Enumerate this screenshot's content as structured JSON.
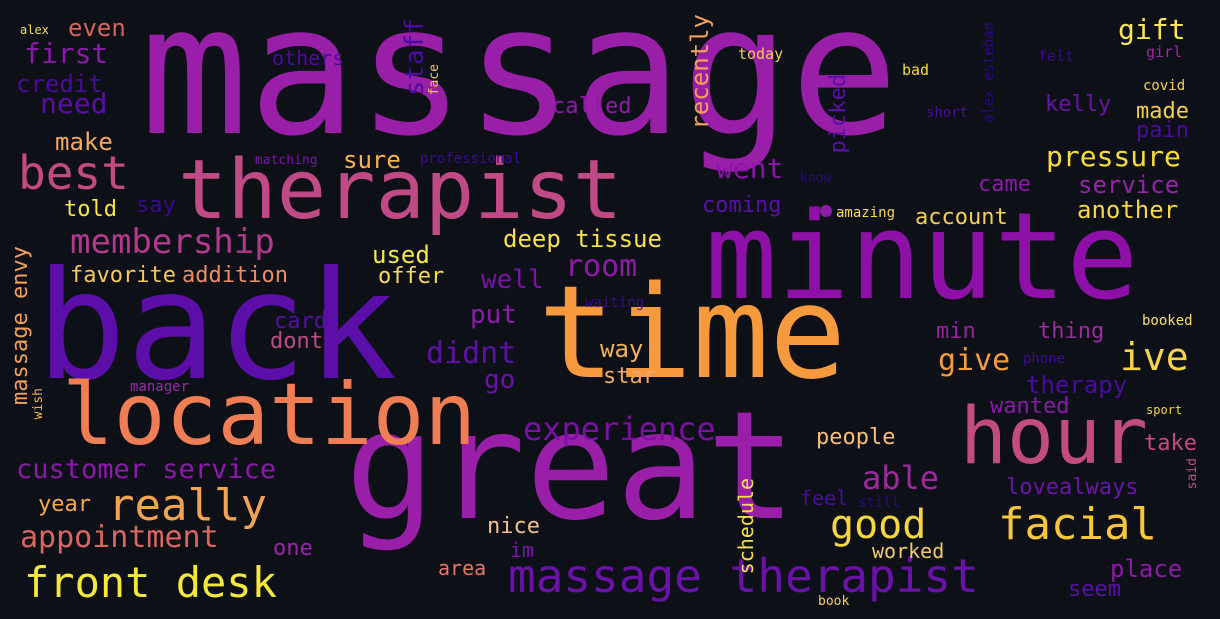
{
  "words": [
    {
      "text": "massage",
      "color": "#9a1fa8",
      "size": 180,
      "rot": 0,
      "weight": 1.0
    },
    {
      "text": "time",
      "color": "#f79a3e",
      "size": 128,
      "rot": 0,
      "weight": 0.85
    },
    {
      "text": "back",
      "color": "#5b0ea8",
      "size": 150,
      "rot": 0,
      "weight": 0.9
    },
    {
      "text": "minute",
      "color": "#8e10a8",
      "size": 120,
      "rot": 0,
      "weight": 0.8
    },
    {
      "text": "great",
      "color": "#9a1fa8",
      "size": 150,
      "rot": 0,
      "weight": 0.9
    },
    {
      "text": "therapist",
      "color": "#c04a86",
      "size": 82,
      "rot": 0,
      "weight": 0.6
    },
    {
      "text": "location",
      "color": "#ef7e55",
      "size": 86,
      "rot": 0,
      "weight": 0.6
    },
    {
      "text": "hour",
      "color": "#c24c80",
      "size": 78,
      "rot": 0,
      "weight": 0.55
    },
    {
      "text": "massage therapist",
      "color": "#6a12a8",
      "size": 46,
      "rot": 0,
      "weight": 0.4
    },
    {
      "text": "facial",
      "color": "#f8c63a",
      "size": 44,
      "rot": 0,
      "weight": 0.38
    },
    {
      "text": "good",
      "color": "#f6d542",
      "size": 40,
      "rot": 0,
      "weight": 0.35
    },
    {
      "text": "front desk",
      "color": "#f4e93b",
      "size": 42,
      "rot": 0,
      "weight": 0.36
    },
    {
      "text": "best",
      "color": "#c44b7e",
      "size": 46,
      "rot": 0,
      "weight": 0.38
    },
    {
      "text": "really",
      "color": "#f2a450",
      "size": 44,
      "rot": 0,
      "weight": 0.36
    },
    {
      "text": "membership",
      "color": "#b2398c",
      "size": 34,
      "rot": 0,
      "weight": 0.3
    },
    {
      "text": "experience",
      "color": "#7a0fa6",
      "size": 32,
      "rot": 0,
      "weight": 0.28
    },
    {
      "text": "appointment",
      "color": "#d96660",
      "size": 30,
      "rot": 0,
      "weight": 0.26
    },
    {
      "text": "customer service",
      "color": "#8a1aa8",
      "size": 27,
      "rot": 0,
      "weight": 0.24
    },
    {
      "text": "ive",
      "color": "#f8d548",
      "size": 38,
      "rot": 0,
      "weight": 0.32
    },
    {
      "text": "able",
      "color": "#9c2a9e",
      "size": 32,
      "rot": 0,
      "weight": 0.28
    },
    {
      "text": "room",
      "color": "#8e1aa6",
      "size": 30,
      "rot": 0,
      "weight": 0.26
    },
    {
      "text": "didnt",
      "color": "#5c10a6",
      "size": 30,
      "rot": 0,
      "weight": 0.26
    },
    {
      "text": "give",
      "color": "#f49c3c",
      "size": 30,
      "rot": 0,
      "weight": 0.26
    },
    {
      "text": "pressure",
      "color": "#f8dc3a",
      "size": 28,
      "rot": 0,
      "weight": 0.24
    },
    {
      "text": "deep tissue",
      "color": "#f8e04a",
      "size": 24,
      "rot": 0,
      "weight": 0.22
    },
    {
      "text": "went",
      "color": "#8a14a8",
      "size": 28,
      "rot": 0,
      "weight": 0.24
    },
    {
      "text": "gift",
      "color": "#f8e458",
      "size": 28,
      "rot": 0,
      "weight": 0.24
    },
    {
      "text": "first",
      "color": "#8a1aa8",
      "size": 28,
      "rot": 0,
      "weight": 0.24
    },
    {
      "text": "need",
      "color": "#5a0ea6",
      "size": 28,
      "rot": 0,
      "weight": 0.24
    },
    {
      "text": "even",
      "color": "#d7635e",
      "size": 24,
      "rot": 0,
      "weight": 0.22
    },
    {
      "text": "credit",
      "color": "#4a0a9c",
      "size": 24,
      "rot": 0,
      "weight": 0.22
    },
    {
      "text": "make",
      "color": "#f7a95a",
      "size": 24,
      "rot": 0,
      "weight": 0.22
    },
    {
      "text": "told",
      "color": "#f8e64a",
      "size": 22,
      "rot": 0,
      "weight": 0.2
    },
    {
      "text": "say",
      "color": "#3a0a8e",
      "size": 22,
      "rot": 0,
      "weight": 0.2
    },
    {
      "text": "favorite",
      "color": "#f8c85a",
      "size": 22,
      "rot": 0,
      "weight": 0.2
    },
    {
      "text": "addition",
      "color": "#ee8c66",
      "size": 22,
      "rot": 0,
      "weight": 0.2
    },
    {
      "text": "used",
      "color": "#f8e84a",
      "size": 24,
      "rot": 0,
      "weight": 0.22
    },
    {
      "text": "offer",
      "color": "#f7dc5a",
      "size": 22,
      "rot": 0,
      "weight": 0.2
    },
    {
      "text": "sure",
      "color": "#f8b34a",
      "size": 24,
      "rot": 0,
      "weight": 0.22
    },
    {
      "text": "well",
      "color": "#7a14a8",
      "size": 26,
      "rot": 0,
      "weight": 0.22
    },
    {
      "text": "put",
      "color": "#8c1aa8",
      "size": 26,
      "rot": 0,
      "weight": 0.22
    },
    {
      "text": "go",
      "color": "#6a12a8",
      "size": 26,
      "rot": 0,
      "weight": 0.22
    },
    {
      "text": "way",
      "color": "#f6b05a",
      "size": 24,
      "rot": 0,
      "weight": 0.2
    },
    {
      "text": "star",
      "color": "#f2a86a",
      "size": 22,
      "rot": 0,
      "weight": 0.2
    },
    {
      "text": "card",
      "color": "#5410a4",
      "size": 22,
      "rot": 0,
      "weight": 0.2
    },
    {
      "text": "dont",
      "color": "#c04a86",
      "size": 22,
      "rot": 0,
      "weight": 0.2
    },
    {
      "text": "called",
      "color": "#8e1aa8",
      "size": 22,
      "rot": 0,
      "weight": 0.2
    },
    {
      "text": "others",
      "color": "#4a0c9e",
      "size": 20,
      "rot": 0,
      "weight": 0.18
    },
    {
      "text": "today",
      "color": "#f4cc58",
      "size": 15,
      "rot": 0,
      "weight": 0.14
    },
    {
      "text": "coming",
      "color": "#5a10a8",
      "size": 22,
      "rot": 0,
      "weight": 0.2
    },
    {
      "text": "kelly",
      "color": "#6a14a8",
      "size": 22,
      "rot": 0,
      "weight": 0.2
    },
    {
      "text": "made",
      "color": "#f6d04a",
      "size": 22,
      "rot": 0,
      "weight": 0.2
    },
    {
      "text": "pain",
      "color": "#4a0c9e",
      "size": 22,
      "rot": 0,
      "weight": 0.2
    },
    {
      "text": "service",
      "color": "#9226a6",
      "size": 24,
      "rot": 0,
      "weight": 0.22
    },
    {
      "text": "came",
      "color": "#8a1aa8",
      "size": 22,
      "rot": 0,
      "weight": 0.2
    },
    {
      "text": "account",
      "color": "#f4d05a",
      "size": 22,
      "rot": 0,
      "weight": 0.2
    },
    {
      "text": "another",
      "color": "#f8d648",
      "size": 24,
      "rot": 0,
      "weight": 0.22
    },
    {
      "text": "amazing",
      "color": "#f8dc4a",
      "size": 14,
      "rot": 0,
      "weight": 0.13
    },
    {
      "text": "min",
      "color": "#9a209e",
      "size": 22,
      "rot": 0,
      "weight": 0.2
    },
    {
      "text": "thing",
      "color": "#9c2aa0",
      "size": 22,
      "rot": 0,
      "weight": 0.2
    },
    {
      "text": "therapy",
      "color": "#4a0c9e",
      "size": 24,
      "rot": 0,
      "weight": 0.22
    },
    {
      "text": "wanted",
      "color": "#8a1aa8",
      "size": 22,
      "rot": 0,
      "weight": 0.2
    },
    {
      "text": "people",
      "color": "#f8c070",
      "size": 22,
      "rot": 0,
      "weight": 0.2
    },
    {
      "text": "take",
      "color": "#c84a7a",
      "size": 22,
      "rot": 0,
      "weight": 0.2
    },
    {
      "text": "lovealways",
      "color": "#6a14a8",
      "size": 22,
      "rot": 0,
      "weight": 0.2
    },
    {
      "text": "feel",
      "color": "#4a0c9e",
      "size": 20,
      "rot": 0,
      "weight": 0.18
    },
    {
      "text": "nice",
      "color": "#f4c090",
      "size": 22,
      "rot": 0,
      "weight": 0.2
    },
    {
      "text": "im",
      "color": "#7a14a8",
      "size": 20,
      "rot": 0,
      "weight": 0.18
    },
    {
      "text": "area",
      "color": "#e37a68",
      "size": 20,
      "rot": 0,
      "weight": 0.18
    },
    {
      "text": "worked",
      "color": "#f4cc6a",
      "size": 20,
      "rot": 0,
      "weight": 0.18
    },
    {
      "text": "place",
      "color": "#8e1aa8",
      "size": 24,
      "rot": 0,
      "weight": 0.22
    },
    {
      "text": "seem",
      "color": "#5a10a8",
      "size": 22,
      "rot": 0,
      "weight": 0.2
    },
    {
      "text": "year",
      "color": "#f4aa4a",
      "size": 22,
      "rot": 0,
      "weight": 0.2
    },
    {
      "text": "one",
      "color": "#9a22a6",
      "size": 22,
      "rot": 0,
      "weight": 0.2
    },
    {
      "text": "book",
      "color": "#f8d04a",
      "size": 13,
      "rot": 0,
      "weight": 0.12
    },
    {
      "text": "still",
      "color": "#2a0a80",
      "size": 14,
      "rot": 0,
      "weight": 0.13
    },
    {
      "text": "booked",
      "color": "#f8e070",
      "size": 14,
      "rot": 0,
      "weight": 0.13
    },
    {
      "text": "sport",
      "color": "#f6d44a",
      "size": 12,
      "rot": 0,
      "weight": 0.12
    },
    {
      "text": "phone",
      "color": "#3c0c92",
      "size": 14,
      "rot": 0,
      "weight": 0.13
    },
    {
      "text": "waiting",
      "color": "#3a0a8e",
      "size": 14,
      "rot": 0,
      "weight": 0.13
    },
    {
      "text": "manager",
      "color": "#9a2aa8",
      "size": 14,
      "rot": 0,
      "weight": 0.13
    },
    {
      "text": "matching",
      "color": "#7a14a8",
      "size": 13,
      "rot": 0,
      "weight": 0.12
    },
    {
      "text": "professional",
      "color": "#3a0c92",
      "size": 14,
      "rot": 0,
      "weight": 0.13
    },
    {
      "text": "know",
      "color": "#2a0a80",
      "size": 13,
      "rot": 0,
      "weight": 0.12
    },
    {
      "text": "short",
      "color": "#4a0c9e",
      "size": 14,
      "rot": 0,
      "weight": 0.13
    },
    {
      "text": "bad",
      "color": "#f8dc3a",
      "size": 15,
      "rot": 0,
      "weight": 0.14
    },
    {
      "text": "felt",
      "color": "#3a0a8e",
      "size": 15,
      "rot": 0,
      "weight": 0.14
    },
    {
      "text": "girl",
      "color": "#9a2aa0",
      "size": 15,
      "rot": 0,
      "weight": 0.14
    },
    {
      "text": "covid",
      "color": "#f8d04a",
      "size": 14,
      "rot": 0,
      "weight": 0.13
    },
    {
      "text": "alex",
      "color": "#f8e058",
      "size": 12,
      "rot": 0,
      "weight": 0.11
    },
    {
      "text": "staff",
      "color": "#4a0c9e",
      "size": 26,
      "rot": 90,
      "weight": 0.22
    },
    {
      "text": "recently",
      "color": "#f2a05a",
      "size": 24,
      "rot": 90,
      "weight": 0.22
    },
    {
      "text": "picked",
      "color": "#5a10a8",
      "size": 22,
      "rot": 90,
      "weight": 0.2
    },
    {
      "text": "massage envy",
      "color": "#f2a05a",
      "size": 22,
      "rot": 90,
      "weight": 0.2
    },
    {
      "text": "schedule",
      "color": "#f8e04a",
      "size": 20,
      "rot": 90,
      "weight": 0.18
    },
    {
      "text": "face",
      "color": "#f7c860",
      "size": 13,
      "rot": 90,
      "weight": 0.12
    },
    {
      "text": "alex esteban",
      "color": "#2a0a80",
      "size": 14,
      "rot": 90,
      "weight": 0.13
    },
    {
      "text": "wish",
      "color": "#f6b04a",
      "size": 13,
      "rot": 90,
      "weight": 0.12
    },
    {
      "text": "said",
      "color": "#c04a86",
      "size": 13,
      "rot": 90,
      "weight": 0.12
    }
  ]
}
